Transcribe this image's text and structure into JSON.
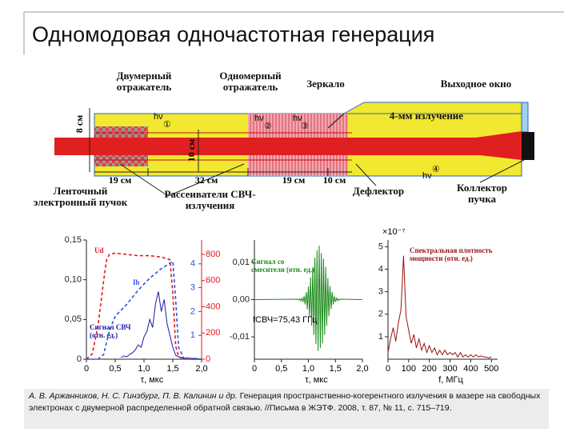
{
  "title": "Одномодовая одночастотная генерация",
  "diagram": {
    "labels": [
      "Двумерный отражатель",
      "Одномерный отражатель",
      "Зеркало",
      "Выходное окно",
      "4-мм излучение",
      "Ленточный электронный пучок",
      "Рассеиватели СВЧ-излучения",
      "Дефлектор",
      "Коллектор пучка"
    ],
    "dimensions": [
      "8 см",
      "10 см",
      "19 см",
      "32 см",
      "19 см",
      "10 см"
    ],
    "markers": [
      {
        "num": "①",
        "hv": "hν"
      },
      {
        "num": "②",
        "hv": "hν"
      },
      {
        "num": "③",
        "hv": "hν"
      },
      {
        "num": "④",
        "hv": "hν"
      }
    ]
  },
  "chart_data": [
    {
      "type": "line",
      "xlabel": "τ, мкс",
      "xlim": [
        0,
        2
      ],
      "xticks": [
        0,
        {
          "value": 0.5,
          "label": "0,5"
        },
        {
          "value": 1,
          "label": "1,0"
        },
        {
          "value": 1.5,
          "label": "1,5"
        },
        {
          "value": 2,
          "label": "2,0"
        }
      ],
      "ylim": [
        0,
        0.15
      ],
      "yticks": [
        0,
        {
          "value": 0.05,
          "label": "0,05"
        },
        {
          "value": 0.1,
          "label": "0,10"
        },
        {
          "value": 0.15,
          "label": "0,15"
        }
      ],
      "y2lim": [
        0,
        910
      ],
      "y2ticks": [
        0,
        200,
        400,
        600,
        800
      ],
      "y2_color": "#e8141e",
      "y3lim": [
        0,
        5
      ],
      "y3ticks": [
        1,
        2,
        3,
        4
      ],
      "y3_color": "#3050e0",
      "series": [
        {
          "name": "Ud",
          "color": "#e8141e",
          "style": "dashed",
          "axis": "y2",
          "x": [
            0,
            0.1,
            0.2,
            0.3,
            0.35,
            0.4,
            0.5,
            0.7,
            0.9,
            1.1,
            1.3,
            1.45,
            1.5,
            1.55,
            1.6,
            1.7,
            2.0
          ],
          "values": [
            0,
            40,
            250,
            600,
            760,
            800,
            810,
            800,
            790,
            790,
            780,
            760,
            500,
            100,
            20,
            0,
            0
          ]
        },
        {
          "name": "Ib",
          "color": "#3050e0",
          "style": "dashed",
          "axis": "y3",
          "x": [
            0,
            0.2,
            0.3,
            0.4,
            0.5,
            0.7,
            0.9,
            1.1,
            1.3,
            1.5,
            1.55,
            1.6,
            1.7,
            2.0
          ],
          "values": [
            0,
            0,
            0.2,
            1.2,
            1.8,
            2.3,
            2.9,
            3.4,
            3.8,
            4.1,
            2.5,
            0.5,
            0,
            0
          ]
        },
        {
          "name": "Сигнал СВЧ (отн. ед.)",
          "color": "#1a1aa8",
          "style": "solid",
          "axis": "y",
          "x": [
            0.6,
            0.65,
            0.7,
            0.75,
            0.8,
            0.85,
            0.9,
            0.95,
            1.0,
            1.05,
            1.1,
            1.15,
            1.2,
            1.25,
            1.3,
            1.35,
            1.4,
            1.45,
            1.5,
            1.55,
            1.6,
            1.65,
            1.7,
            1.75,
            1.8,
            1.85,
            1.9,
            1.95,
            2.0
          ],
          "values": [
            0.002,
            0.004,
            0.003,
            0.006,
            0.008,
            0.012,
            0.018,
            0.015,
            0.028,
            0.035,
            0.05,
            0.04,
            0.07,
            0.085,
            0.06,
            0.075,
            0.045,
            0.03,
            0.015,
            0.005,
            0.003,
            0.002,
            0.001,
            0.002,
            0.001,
            0.001,
            0.001,
            0.0,
            0.0
          ]
        }
      ]
    },
    {
      "type": "line",
      "xlabel": "τ, мкс",
      "xlim": [
        0,
        2
      ],
      "xticks": [
        0,
        {
          "value": 0.5,
          "label": "0,5"
        },
        {
          "value": 1,
          "label": "1,0"
        },
        {
          "value": 1.5,
          "label": "1,5"
        },
        {
          "value": 2,
          "label": "2,0"
        }
      ],
      "ylim": [
        -0.016,
        0.016
      ],
      "yticks": [
        {
          "value": -0.01,
          "label": "-0,01"
        },
        {
          "value": 0,
          "label": "0,00"
        },
        {
          "value": 0.01,
          "label": "0,01"
        }
      ],
      "annotations": [
        "fСВЧ=75,43 ГГц"
      ],
      "series": [
        {
          "name": "Сигнал со смесителя (отн. ед.)",
          "color": "#1b8a1b",
          "style": "solid",
          "axis": "y",
          "x": [
            0,
            0.8,
            0.82,
            0.84,
            0.86,
            0.88,
            0.9,
            0.92,
            0.94,
            0.96,
            0.98,
            1.0,
            1.02,
            1.04,
            1.06,
            1.08,
            1.1,
            1.12,
            1.14,
            1.16,
            1.18,
            1.2,
            1.22,
            1.24,
            1.26,
            1.28,
            1.3,
            1.32,
            1.34,
            1.36,
            1.38,
            1.4,
            1.42,
            1.44,
            1.46,
            1.48,
            1.5,
            1.52,
            1.54,
            1.56,
            1.58,
            1.6,
            2.0
          ],
          "values": [
            0,
            0.0001,
            -0.0001,
            0.0002,
            -0.0003,
            0.0004,
            -0.0006,
            0.0009,
            -0.0013,
            0.002,
            -0.0026,
            0.0035,
            -0.0045,
            0.006,
            -0.007,
            0.0085,
            -0.0095,
            0.0112,
            -0.012,
            0.0132,
            -0.0138,
            0.0145,
            -0.013,
            0.0125,
            -0.0118,
            0.011,
            -0.0095,
            0.0088,
            -0.007,
            0.0058,
            -0.0045,
            0.0036,
            -0.0026,
            0.002,
            -0.0013,
            0.0009,
            -0.0006,
            0.0004,
            -0.0003,
            0.0002,
            -0.0001,
            0.0001,
            0
          ]
        }
      ]
    },
    {
      "type": "line",
      "xlabel": "f, МГц",
      "xlim": [
        0,
        530
      ],
      "xticks": [
        0,
        100,
        200,
        300,
        400,
        500
      ],
      "ylim": [
        0,
        5.3
      ],
      "yticks": [
        1,
        2,
        3,
        4,
        5
      ],
      "annotations": [
        "×10⁻⁷"
      ],
      "series": [
        {
          "name": "Спектральная плотность мощности (отн. ед.)",
          "color": "#9b1010",
          "style": "solid",
          "axis": "y",
          "x": [
            0,
            12.5,
            25,
            37.5,
            50,
            62.5,
            75,
            87.5,
            100,
            112.5,
            125,
            137.5,
            150,
            162.5,
            175,
            187.5,
            200,
            212.5,
            225,
            237.5,
            250,
            262.5,
            275,
            287.5,
            300,
            312.5,
            325,
            337.5,
            350,
            362.5,
            375,
            387.5,
            400,
            412.5,
            425,
            437.5,
            450,
            462.5,
            475,
            487.5,
            500
          ],
          "values": [
            0.3,
            0.9,
            1.4,
            0.8,
            1.6,
            2.2,
            4.6,
            1.9,
            1.3,
            0.7,
            1.1,
            0.5,
            0.9,
            0.4,
            0.7,
            0.3,
            0.6,
            0.3,
            0.5,
            0.2,
            0.4,
            0.2,
            0.4,
            0.2,
            0.3,
            0.2,
            0.3,
            0.1,
            0.3,
            0.1,
            0.2,
            0.1,
            0.2,
            0.1,
            0.2,
            0.1,
            0.15,
            0.1,
            0.1,
            0.05,
            0.1
          ]
        }
      ]
    }
  ],
  "citation": {
    "authors": "А. В. Аржанников, Н. С. Гинзбург, П. В. Калинин и др.",
    "text": "Генерация пространственно-когерентного излучения в мазере на свободных электронах с двумерной распределенной обратной связью. //Письма в ЖЭТФ. 2008, т. 87, № 11, с. 715–719."
  }
}
